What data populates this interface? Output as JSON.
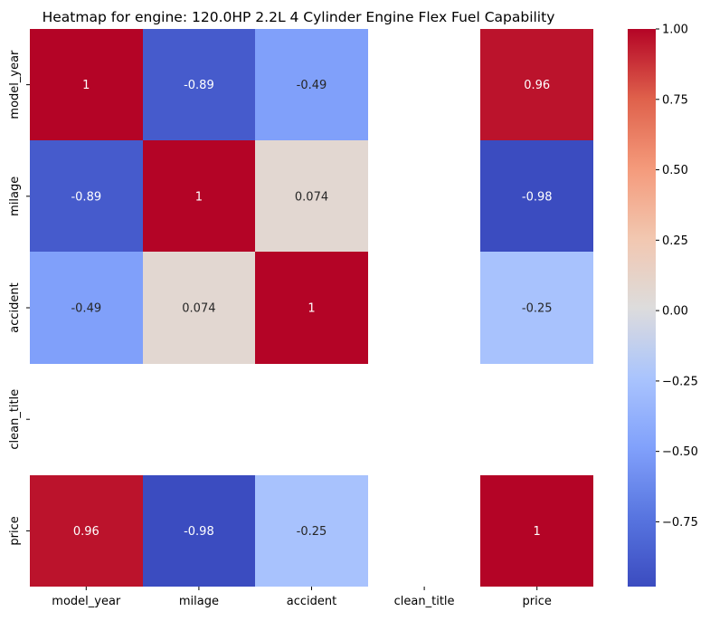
{
  "chart_data": {
    "type": "heatmap",
    "title": "Heatmap for engine: 120.0HP 2.2L 4 Cylinder Engine Flex Fuel Capability",
    "xlabel": "",
    "ylabel": "",
    "x_categories": [
      "model_year",
      "milage",
      "accident",
      "clean_title",
      "price"
    ],
    "y_categories": [
      "model_year",
      "milage",
      "accident",
      "clean_title",
      "price"
    ],
    "values": [
      [
        1,
        -0.89,
        -0.49,
        null,
        0.96
      ],
      [
        -0.89,
        1,
        0.074,
        null,
        -0.98
      ],
      [
        -0.49,
        0.074,
        1,
        null,
        -0.25
      ],
      [
        null,
        null,
        null,
        null,
        null
      ],
      [
        0.96,
        -0.98,
        -0.25,
        null,
        1
      ]
    ],
    "annotations": [
      [
        "1",
        "-0.89",
        "-0.49",
        "",
        "0.96"
      ],
      [
        "-0.89",
        "1",
        "0.074",
        "",
        "-0.98"
      ],
      [
        "-0.49",
        "0.074",
        "1",
        "",
        "-0.25"
      ],
      [
        "",
        "",
        "",
        "",
        ""
      ],
      [
        "0.96",
        "-0.98",
        "-0.25",
        "",
        "1"
      ]
    ],
    "colormap": "coolwarm",
    "colorbar": {
      "min": -0.98,
      "max": 1.0,
      "ticks": [
        1.0,
        0.75,
        0.5,
        0.25,
        0.0,
        -0.25,
        -0.5,
        -0.75
      ],
      "tick_labels": [
        "1.00",
        "0.75",
        "0.50",
        "0.25",
        "0.00",
        "−0.25",
        "−0.50",
        "−0.75"
      ]
    },
    "grid": false,
    "legend": "colorbar-right"
  }
}
